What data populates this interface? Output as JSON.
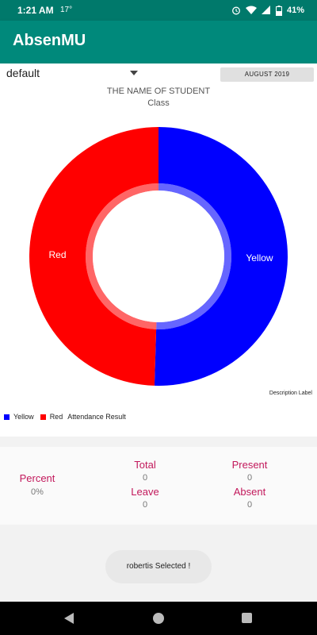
{
  "status_bar": {
    "time": "1:21 AM",
    "temperature": "17°",
    "battery": "41%",
    "icons": [
      "alarm-icon",
      "wifi-icon",
      "cell-signal-icon",
      "battery-icon"
    ]
  },
  "app_bar": {
    "title": "AbsenMU"
  },
  "filter": {
    "spinner_value": "default",
    "month_button": "AUGUST 2019"
  },
  "student": {
    "name": "THE NAME OF STUDENT",
    "class": "Class"
  },
  "chart_data": {
    "type": "pie",
    "hole": true,
    "slices": [
      {
        "label": "Yellow",
        "value": 50.5,
        "color": "#0000ff"
      },
      {
        "label": "Red",
        "value": 49.5,
        "color": "#ff0000"
      }
    ],
    "description": "Description Label",
    "legend": {
      "entries": [
        "Yellow",
        "Red"
      ],
      "title": "Attendance Result"
    }
  },
  "stats": {
    "percent_label": "Percent",
    "percent_value": "0%",
    "total_label": "Total",
    "total_value": "0",
    "present_label": "Present",
    "present_value": "0",
    "leave_label": "Leave",
    "leave_value": "0",
    "absent_label": "Absent",
    "absent_value": "0"
  },
  "toast": {
    "message": "robertis Selected !"
  }
}
